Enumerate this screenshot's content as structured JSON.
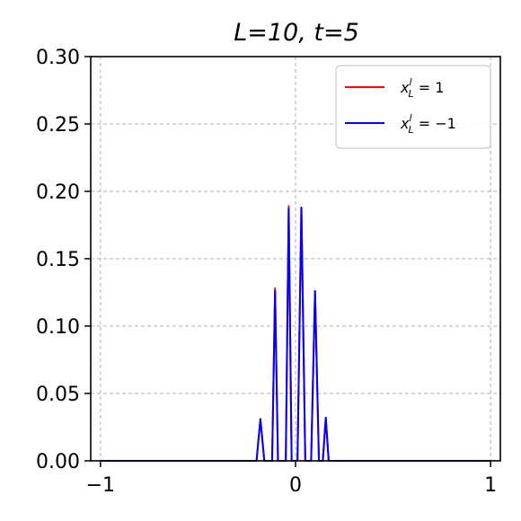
{
  "chart_data": {
    "type": "line",
    "title": "L=10, t=5",
    "xlabel": "",
    "ylabel": "",
    "xlim": [
      -1.05,
      1.05
    ],
    "ylim": [
      0.0,
      0.3
    ],
    "xticks": [
      -1,
      0,
      1
    ],
    "xtick_labels": [
      "−1",
      "0",
      "1"
    ],
    "yticks": [
      0.0,
      0.05,
      0.1,
      0.15,
      0.2,
      0.25,
      0.3
    ],
    "ytick_labels": [
      "0.00",
      "0.05",
      "0.10",
      "0.15",
      "0.20",
      "0.25",
      "0.30"
    ],
    "grid": true,
    "legend_position": "top-right",
    "series": [
      {
        "name": "x_L^l = 1",
        "legend_main": "x",
        "legend_sup": "l",
        "legend_sub": "L",
        "legend_rest": " = 1",
        "color": "#ff0000",
        "x": [
          -1.0,
          -0.2,
          -0.18,
          -0.16,
          -0.14,
          -0.12,
          -0.105,
          -0.09,
          -0.07,
          -0.05,
          -0.035,
          -0.02,
          -0.005,
          0.01,
          0.03,
          0.05,
          0.065,
          0.08,
          0.1,
          0.12,
          0.14,
          0.155,
          0.17,
          0.2,
          1.0
        ],
        "y": [
          0.0,
          0.0,
          0.031,
          0.0,
          0.0,
          0.0,
          0.128,
          0.0,
          0.0,
          0.0,
          0.189,
          0.0,
          0.0,
          0.0,
          0.188,
          0.0,
          0.0,
          0.0,
          0.126,
          0.0,
          0.0,
          0.032,
          0.0,
          0.0,
          0.0
        ]
      },
      {
        "name": "x_L^l = −1",
        "legend_main": "x",
        "legend_sup": "l",
        "legend_sub": "L",
        "legend_rest": " = −1",
        "color": "#0000ff",
        "x": [
          -1.0,
          -0.2,
          -0.18,
          -0.16,
          -0.14,
          -0.12,
          -0.105,
          -0.09,
          -0.07,
          -0.05,
          -0.035,
          -0.02,
          -0.005,
          0.01,
          0.03,
          0.05,
          0.065,
          0.08,
          0.1,
          0.12,
          0.14,
          0.155,
          0.17,
          0.2,
          1.0
        ],
        "y": [
          0.0,
          0.0,
          0.031,
          0.0,
          0.0,
          0.0,
          0.126,
          0.0,
          0.0,
          0.0,
          0.187,
          0.0,
          0.0,
          0.0,
          0.188,
          0.0,
          0.0,
          0.0,
          0.126,
          0.0,
          0.0,
          0.032,
          0.0,
          0.0,
          0.0
        ]
      }
    ]
  }
}
